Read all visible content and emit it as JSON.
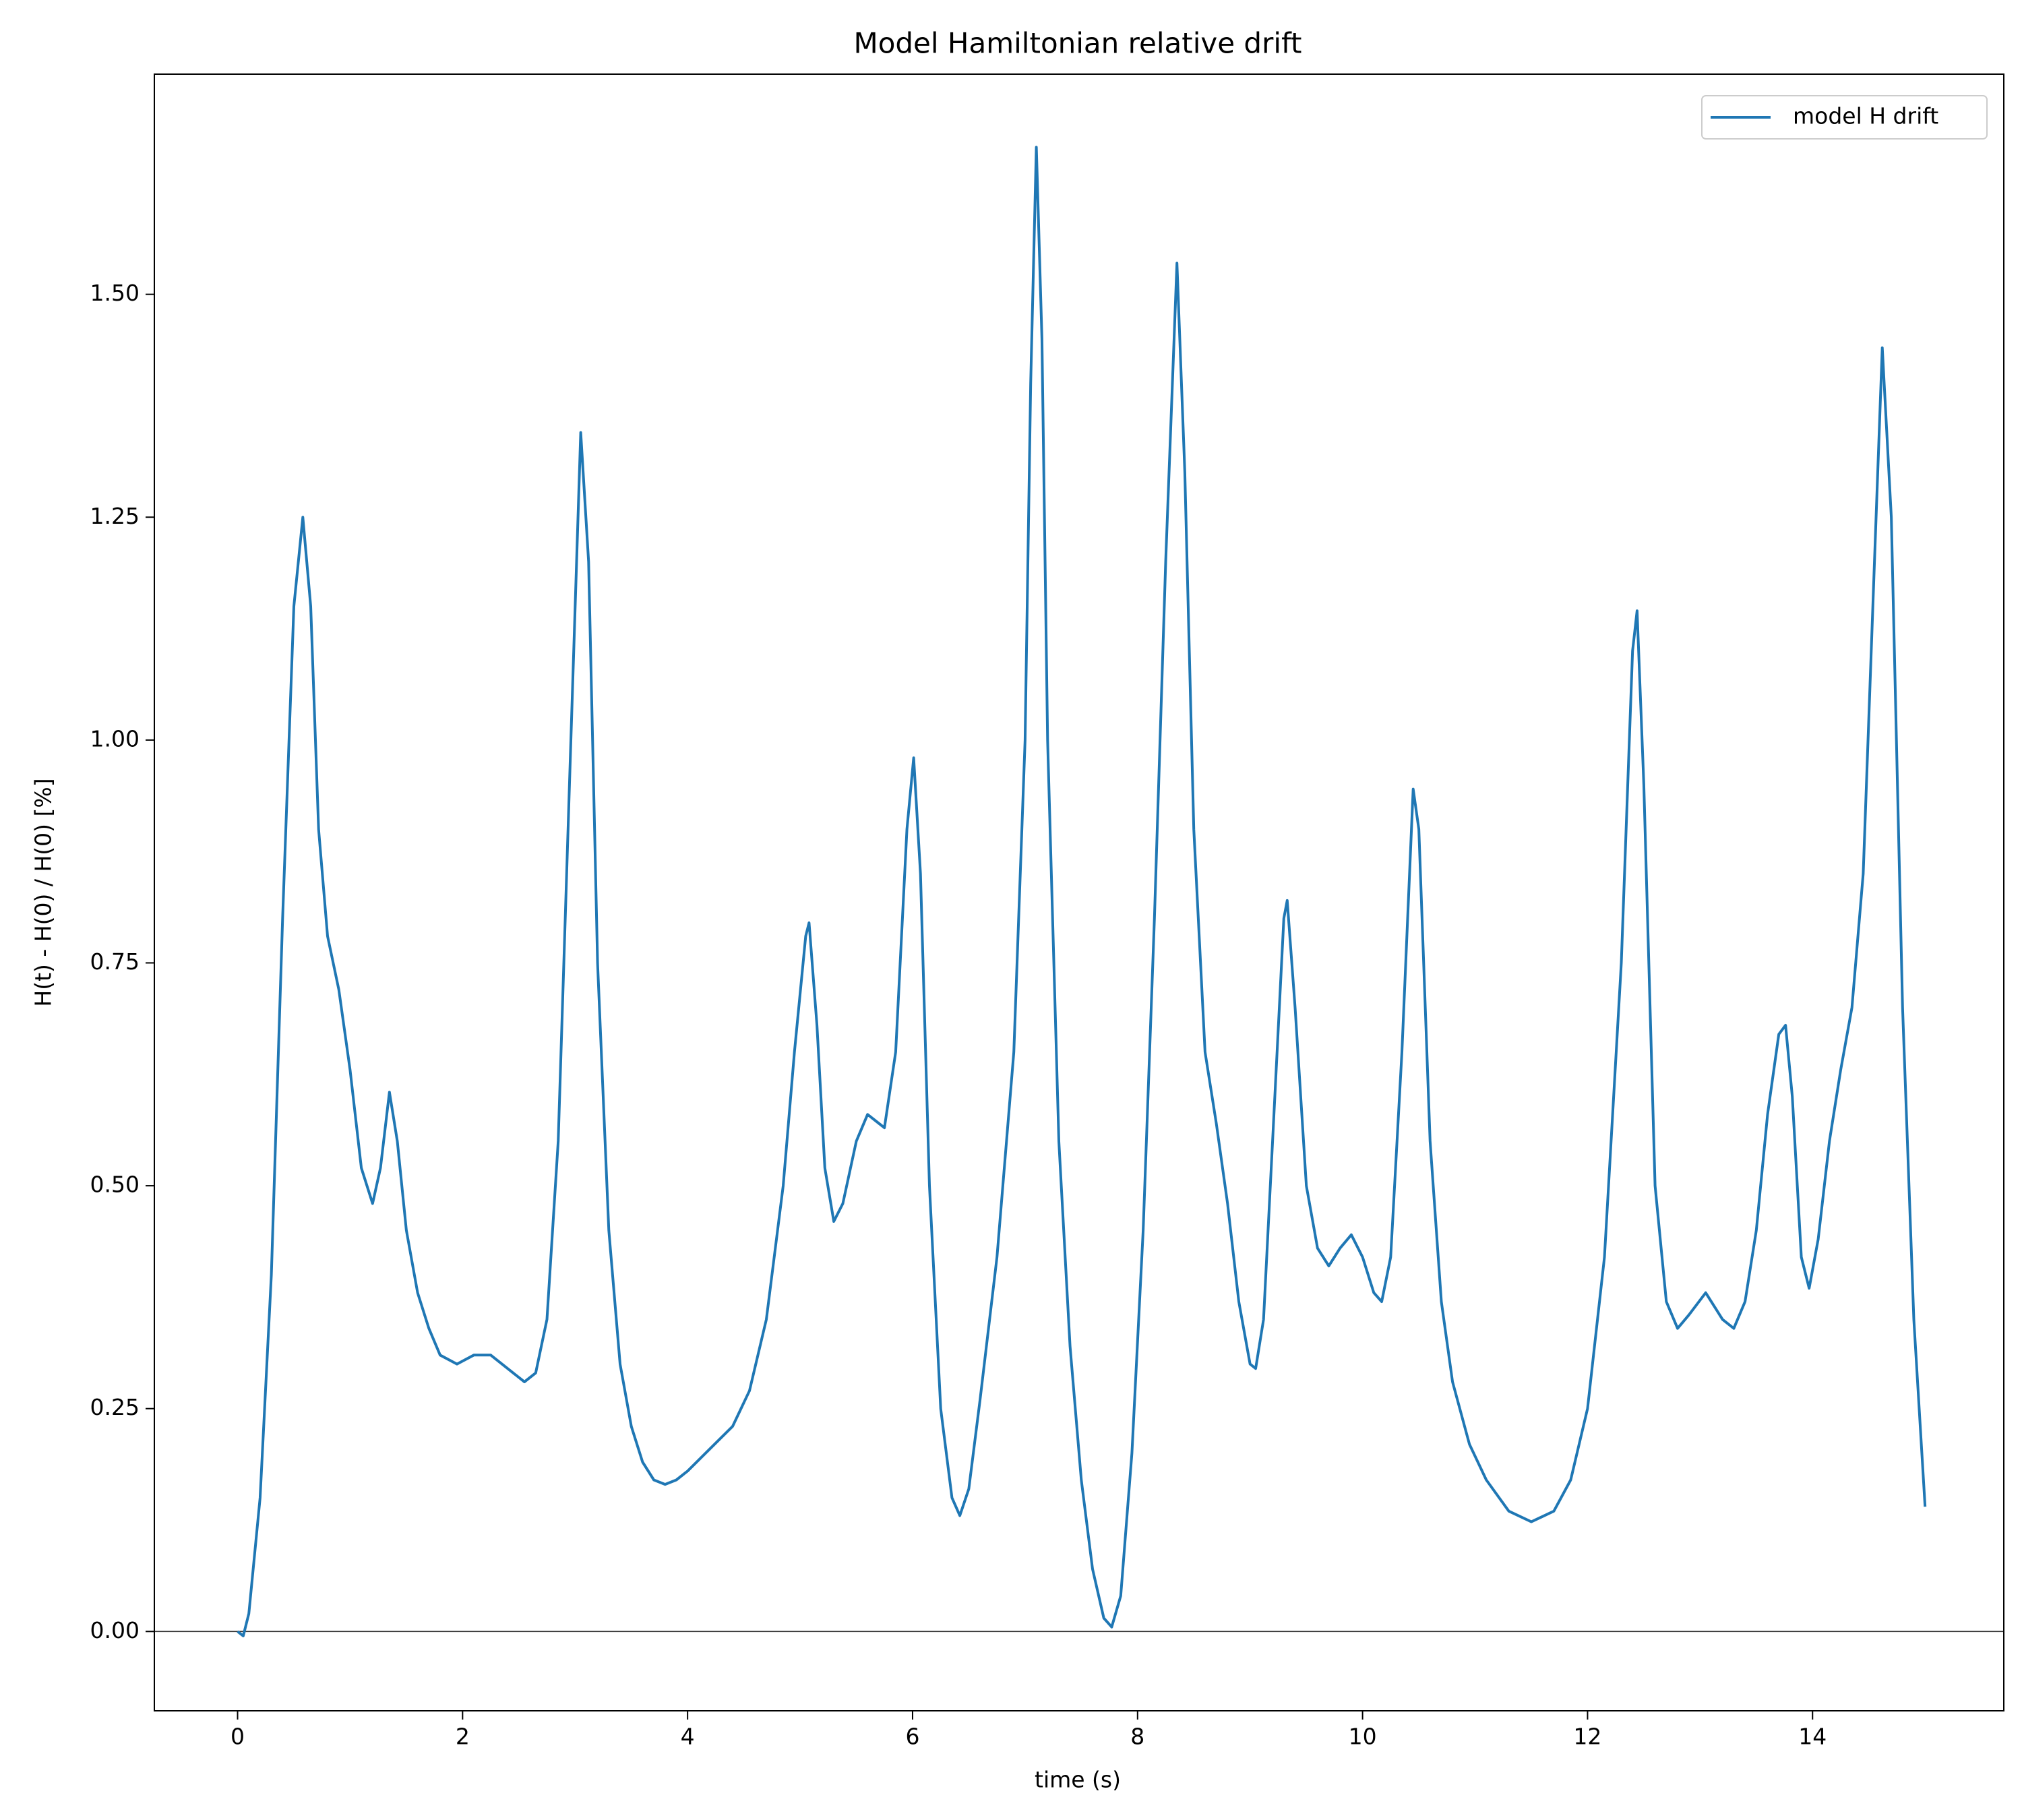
{
  "chart_data": {
    "type": "line",
    "title": "Model Hamiltonian relative drift",
    "x_label": "time (s)",
    "y_label": "H(t) - H(0) / H(0) [%]",
    "xlim": [
      -0.74,
      15.7
    ],
    "ylim": [
      -0.089,
      1.747
    ],
    "xticks": [
      0,
      2,
      4,
      6,
      8,
      10,
      12,
      14
    ],
    "yticks": [
      {
        "value": 0,
        "label": "0.00"
      },
      {
        "value": 0.25,
        "label": "0.25"
      },
      {
        "value": 0.5,
        "label": "0.50"
      },
      {
        "value": 0.75,
        "label": "0.75"
      },
      {
        "value": 1,
        "label": "1.00"
      },
      {
        "value": 1.25,
        "label": "1.25"
      },
      {
        "value": 1.5,
        "label": "1.50"
      }
    ],
    "hline": 0,
    "legend": "upper right",
    "x": [
      0,
      0.05,
      0.1,
      0.2,
      0.3,
      0.4,
      0.5,
      0.58,
      0.65,
      0.72,
      0.8,
      0.9,
      1.0,
      1.1,
      1.2,
      1.27,
      1.35,
      1.42,
      1.5,
      1.6,
      1.7,
      1.8,
      1.95,
      2.1,
      2.25,
      2.4,
      2.55,
      2.65,
      2.75,
      2.85,
      2.95,
      3.05,
      3.12,
      3.2,
      3.3,
      3.4,
      3.5,
      3.6,
      3.7,
      3.8,
      3.9,
      4.0,
      4.2,
      4.4,
      4.55,
      4.7,
      4.85,
      4.95,
      5.05,
      5.08,
      5.15,
      5.22,
      5.3,
      5.38,
      5.5,
      5.6,
      5.7,
      5.75,
      5.85,
      5.95,
      6.01,
      6.07,
      6.15,
      6.25,
      6.35,
      6.42,
      6.5,
      6.6,
      6.75,
      6.9,
      7.0,
      7.05,
      7.1,
      7.15,
      7.2,
      7.3,
      7.4,
      7.5,
      7.6,
      7.7,
      7.77,
      7.85,
      7.95,
      8.05,
      8.15,
      8.25,
      8.35,
      8.42,
      8.5,
      8.6,
      8.7,
      8.8,
      8.9,
      9.0,
      9.05,
      9.12,
      9.2,
      9.3,
      9.33,
      9.4,
      9.5,
      9.6,
      9.7,
      9.8,
      9.9,
      10.0,
      10.1,
      10.17,
      10.25,
      10.35,
      10.45,
      10.5,
      10.6,
      10.7,
      10.8,
      10.95,
      11.1,
      11.3,
      11.5,
      11.7,
      11.85,
      12.0,
      12.15,
      12.3,
      12.4,
      12.44,
      12.5,
      12.6,
      12.7,
      12.8,
      12.9,
      13.05,
      13.2,
      13.3,
      13.4,
      13.5,
      13.6,
      13.7,
      13.76,
      13.82,
      13.9,
      13.97,
      14.05,
      14.15,
      14.25,
      14.35,
      14.45,
      14.55,
      14.62,
      14.7,
      14.8,
      14.9,
      15.0
    ],
    "series": [
      {
        "name": "model H drift",
        "color": "#1f77b4",
        "values": [
          0,
          -0.005,
          0.02,
          0.15,
          0.4,
          0.8,
          1.15,
          1.25,
          1.15,
          0.9,
          0.78,
          0.72,
          0.63,
          0.52,
          0.48,
          0.52,
          0.605,
          0.55,
          0.45,
          0.38,
          0.34,
          0.31,
          0.3,
          0.31,
          0.31,
          0.295,
          0.28,
          0.29,
          0.35,
          0.55,
          0.95,
          1.345,
          1.2,
          0.75,
          0.45,
          0.3,
          0.23,
          0.19,
          0.17,
          0.165,
          0.17,
          0.18,
          0.205,
          0.23,
          0.27,
          0.35,
          0.5,
          0.65,
          0.78,
          0.795,
          0.68,
          0.52,
          0.46,
          0.48,
          0.55,
          0.58,
          0.57,
          0.565,
          0.65,
          0.9,
          0.98,
          0.85,
          0.5,
          0.25,
          0.15,
          0.13,
          0.16,
          0.26,
          0.42,
          0.65,
          1.0,
          1.4,
          1.665,
          1.45,
          1.0,
          0.55,
          0.32,
          0.17,
          0.07,
          0.015,
          0.005,
          0.04,
          0.2,
          0.45,
          0.8,
          1.2,
          1.535,
          1.3,
          0.9,
          0.65,
          0.57,
          0.48,
          0.37,
          0.3,
          0.295,
          0.35,
          0.55,
          0.8,
          0.82,
          0.7,
          0.5,
          0.43,
          0.41,
          0.43,
          0.445,
          0.42,
          0.38,
          0.37,
          0.42,
          0.65,
          0.945,
          0.9,
          0.55,
          0.37,
          0.28,
          0.21,
          0.17,
          0.135,
          0.123,
          0.135,
          0.17,
          0.25,
          0.42,
          0.75,
          1.1,
          1.145,
          0.95,
          0.5,
          0.37,
          0.34,
          0.355,
          0.38,
          0.35,
          0.34,
          0.37,
          0.45,
          0.58,
          0.67,
          0.68,
          0.6,
          0.42,
          0.385,
          0.44,
          0.55,
          0.63,
          0.7,
          0.85,
          1.2,
          1.44,
          1.25,
          0.7,
          0.35,
          0.14
        ]
      }
    ]
  }
}
